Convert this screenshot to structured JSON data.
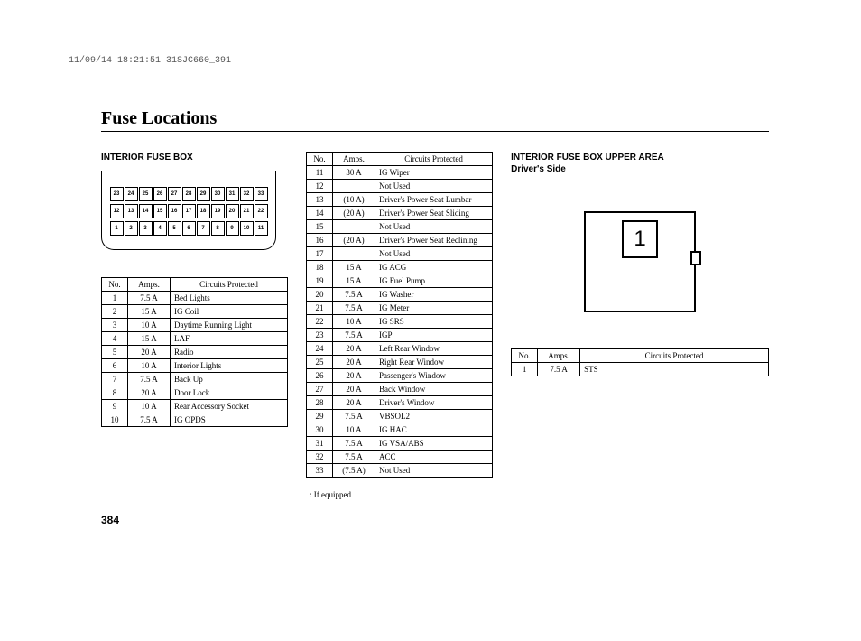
{
  "header_stamp": "11/09/14 18:21:51 31SJC660_391",
  "page_title": "Fuse Locations",
  "page_number": "384",
  "section1_title": "INTERIOR FUSE BOX",
  "section3_title_line1": "INTERIOR FUSE BOX UPPER AREA",
  "section3_title_line2": "Driver's Side",
  "table_headers": {
    "no": "No.",
    "amps": "Amps.",
    "circuits": "Circuits Protected"
  },
  "footnote": ":   If equipped",
  "upperbox_label": "1",
  "fusebox_rows": [
    [
      "23",
      "24",
      "25",
      "26",
      "27",
      "28",
      "29",
      "30",
      "31",
      "32",
      "33"
    ],
    [
      "12",
      "13",
      "14",
      "15",
      "16",
      "17",
      "18",
      "19",
      "20",
      "21",
      "22"
    ],
    [
      "1",
      "2",
      "3",
      "4",
      "5",
      "6",
      "7",
      "8",
      "9",
      "10",
      "11"
    ]
  ],
  "table1": [
    {
      "no": "1",
      "amps": "7.5 A",
      "circ": "Bed Lights"
    },
    {
      "no": "2",
      "amps": "15 A",
      "circ": "IG Coil"
    },
    {
      "no": "3",
      "amps": "10 A",
      "circ": "Daytime Running Light"
    },
    {
      "no": "4",
      "amps": "15 A",
      "circ": "LAF"
    },
    {
      "no": "5",
      "amps": "20 A",
      "circ": "Radio"
    },
    {
      "no": "6",
      "amps": "10 A",
      "circ": "Interior Lights"
    },
    {
      "no": "7",
      "amps": "7.5 A",
      "circ": "Back Up"
    },
    {
      "no": "8",
      "amps": "20 A",
      "circ": "Door Lock"
    },
    {
      "no": "9",
      "amps": "10 A",
      "circ": "Rear Accessory Socket"
    },
    {
      "no": "10",
      "amps": "7.5 A",
      "circ": "IG OPDS"
    }
  ],
  "table2": [
    {
      "no": "11",
      "amps": "30 A",
      "circ": "IG Wiper"
    },
    {
      "no": "12",
      "amps": "",
      "circ": "Not Used"
    },
    {
      "no": "13",
      "amps": "(10 A)",
      "circ": "Driver's Power Seat Lumbar"
    },
    {
      "no": "14",
      "amps": "(20 A)",
      "circ": "Driver's Power Seat Sliding"
    },
    {
      "no": "15",
      "amps": "",
      "circ": "Not Used"
    },
    {
      "no": "16",
      "amps": "(20 A)",
      "circ": "Driver's Power Seat Reclining"
    },
    {
      "no": "17",
      "amps": "",
      "circ": "Not Used"
    },
    {
      "no": "18",
      "amps": "15 A",
      "circ": "IG ACG"
    },
    {
      "no": "19",
      "amps": "15 A",
      "circ": "IG Fuel Pump"
    },
    {
      "no": "20",
      "amps": "7.5 A",
      "circ": "IG Washer"
    },
    {
      "no": "21",
      "amps": "7.5 A",
      "circ": "IG Meter"
    },
    {
      "no": "22",
      "amps": "10 A",
      "circ": "IG SRS"
    },
    {
      "no": "23",
      "amps": "7.5 A",
      "circ": "IGP"
    },
    {
      "no": "24",
      "amps": "20 A",
      "circ": "Left Rear Window"
    },
    {
      "no": "25",
      "amps": "20 A",
      "circ": "Right Rear Window"
    },
    {
      "no": "26",
      "amps": "20 A",
      "circ": "Passenger's Window"
    },
    {
      "no": "27",
      "amps": "20 A",
      "circ": "Back Window"
    },
    {
      "no": "28",
      "amps": "20 A",
      "circ": "Driver's Window"
    },
    {
      "no": "29",
      "amps": "7.5 A",
      "circ": "VBSOL2"
    },
    {
      "no": "30",
      "amps": "10 A",
      "circ": "IG HAC"
    },
    {
      "no": "31",
      "amps": "7.5 A",
      "circ": "IG VSA/ABS"
    },
    {
      "no": "32",
      "amps": "7.5 A",
      "circ": "ACC"
    },
    {
      "no": "33",
      "amps": "(7.5 A)",
      "circ": "Not Used"
    }
  ],
  "table3": [
    {
      "no": "1",
      "amps": "7.5 A",
      "circ": "STS"
    }
  ]
}
